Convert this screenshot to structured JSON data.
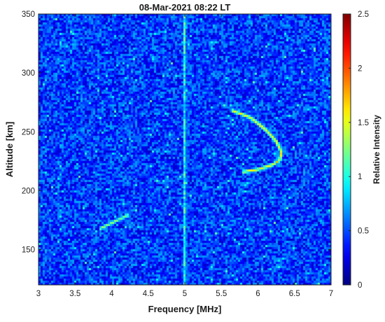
{
  "chart_data": {
    "type": "heatmap",
    "title": "08-Mar-2021 08:22 LT",
    "xlabel": "Frequency [MHz]",
    "ylabel": "Altitude [km]",
    "colorbar_label": "Relative Intensity",
    "xlim": [
      3,
      7
    ],
    "ylim": [
      120,
      350
    ],
    "clim": [
      0,
      2.5
    ],
    "colormap": "jet",
    "x_ticks": [
      3,
      3.5,
      4,
      4.5,
      5,
      5.5,
      6,
      6.5,
      7
    ],
    "x_tick_labels": [
      "3",
      "3.5",
      "4",
      "4.5",
      "5",
      "5.5",
      "6",
      "6.5",
      "7"
    ],
    "y_ticks": [
      150,
      200,
      250,
      300,
      350
    ],
    "y_tick_labels": [
      "150",
      "200",
      "250",
      "300",
      "350"
    ],
    "colorbar_ticks": [
      0,
      0.5,
      1,
      1.5,
      2,
      2.5
    ],
    "colorbar_tick_labels": [
      "0",
      "0.5",
      "1",
      "1.5",
      "2",
      "2.5"
    ],
    "background_level": 0.45,
    "features": [
      {
        "kind": "vertical-line",
        "frequency_mhz": 5.0,
        "intensity": 1.4
      },
      {
        "kind": "trace",
        "description_points": [
          [
            5.65,
            268
          ],
          [
            5.9,
            262
          ],
          [
            6.1,
            252
          ],
          [
            6.25,
            242
          ],
          [
            6.32,
            233
          ],
          [
            6.3,
            226
          ],
          [
            6.2,
            222
          ],
          [
            6.0,
            218
          ],
          [
            5.8,
            216
          ]
        ],
        "intensity": 1.8
      },
      {
        "kind": "trace",
        "description_points": [
          [
            3.85,
            168
          ],
          [
            3.95,
            171
          ],
          [
            4.05,
            174
          ],
          [
            4.15,
            177
          ],
          [
            4.22,
            179
          ]
        ],
        "intensity": 1.5
      }
    ]
  }
}
